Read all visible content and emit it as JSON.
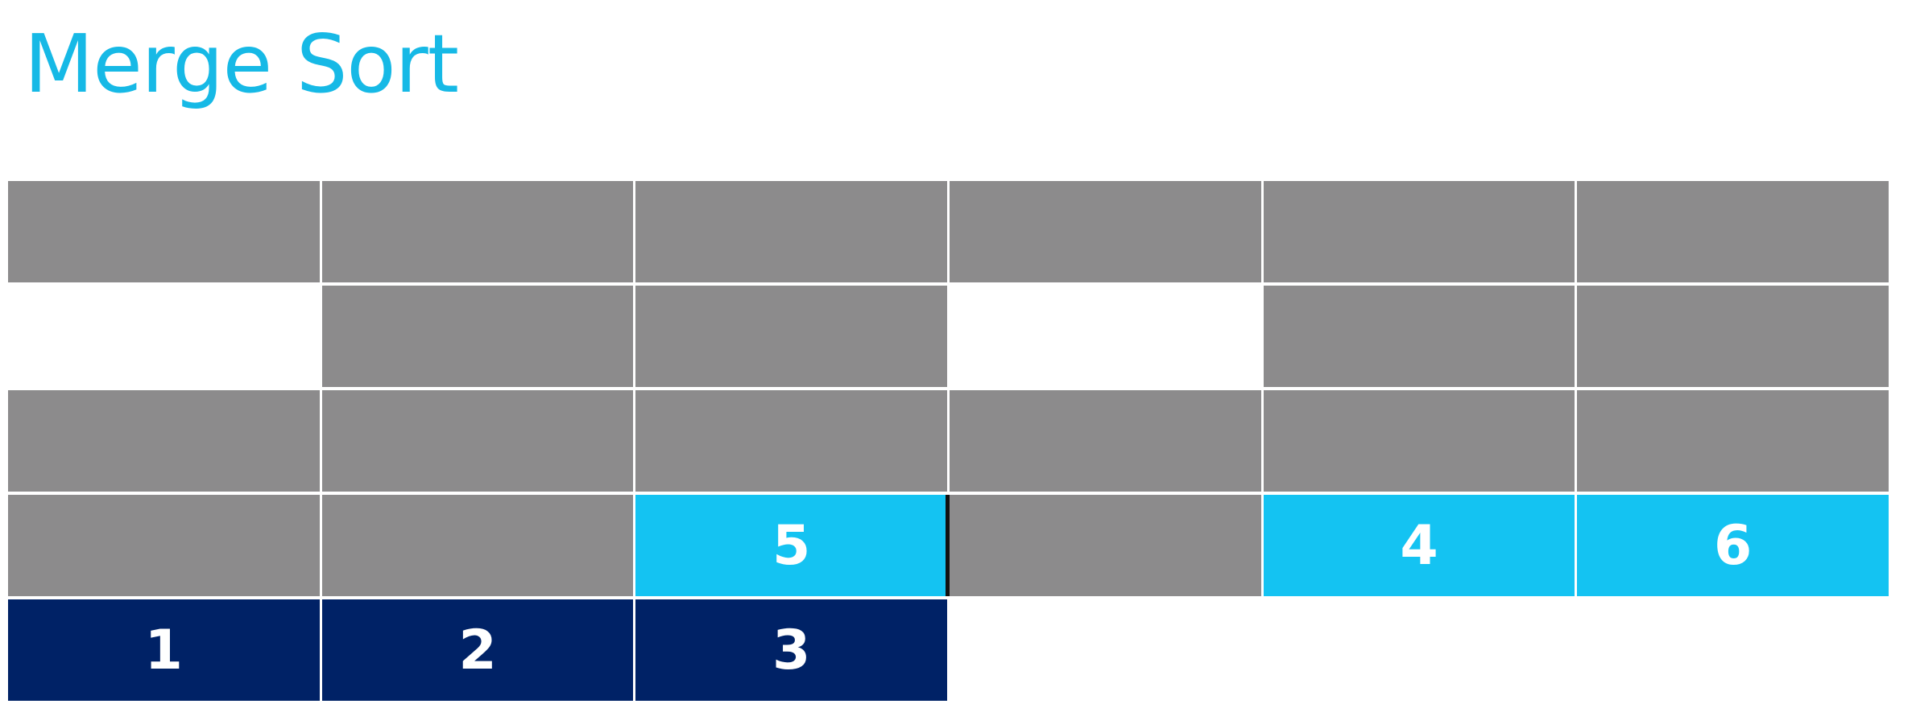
{
  "title": "Merge Sort",
  "colors": {
    "title": "#16b9e6",
    "gray": "#8c8b8c",
    "highlight": "#14c3f2",
    "merged": "#002266",
    "text": "#ffffff"
  },
  "grid": {
    "rows": [
      {
        "cells": [
          {
            "state": "gray",
            "label": ""
          },
          {
            "state": "gray",
            "label": ""
          },
          {
            "state": "gray",
            "label": ""
          },
          {
            "state": "gray",
            "label": ""
          },
          {
            "state": "gray",
            "label": ""
          },
          {
            "state": "gray",
            "label": ""
          }
        ]
      },
      {
        "cells": [
          {
            "state": "empty",
            "label": ""
          },
          {
            "state": "gray",
            "label": ""
          },
          {
            "state": "gray",
            "label": ""
          },
          {
            "state": "empty",
            "label": ""
          },
          {
            "state": "gray",
            "label": ""
          },
          {
            "state": "gray",
            "label": ""
          }
        ]
      },
      {
        "cells": [
          {
            "state": "gray",
            "label": ""
          },
          {
            "state": "gray",
            "label": ""
          },
          {
            "state": "gray",
            "label": ""
          },
          {
            "state": "gray",
            "label": ""
          },
          {
            "state": "gray",
            "label": ""
          },
          {
            "state": "gray",
            "label": ""
          }
        ]
      },
      {
        "cells": [
          {
            "state": "gray",
            "label": ""
          },
          {
            "state": "gray",
            "label": ""
          },
          {
            "state": "light",
            "label": "5"
          },
          {
            "state": "gray",
            "label": "",
            "divider": true
          },
          {
            "state": "light",
            "label": "4"
          },
          {
            "state": "light",
            "label": "6"
          }
        ]
      },
      {
        "cells": [
          {
            "state": "dark",
            "label": "1"
          },
          {
            "state": "dark",
            "label": "2"
          },
          {
            "state": "dark",
            "label": "3"
          },
          {
            "state": "empty",
            "label": ""
          },
          {
            "state": "empty",
            "label": ""
          },
          {
            "state": "empty",
            "label": ""
          }
        ]
      }
    ]
  }
}
